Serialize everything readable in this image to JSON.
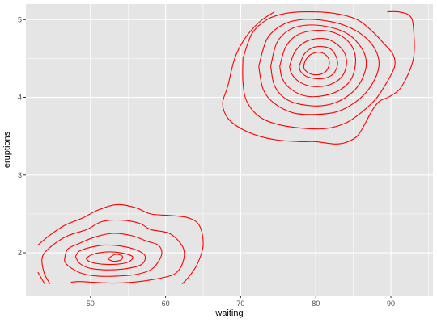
{
  "chart_data": {
    "type": "contour",
    "xlabel": "waiting",
    "ylabel": "eruptions",
    "xlim": [
      41.4,
      95.6
    ],
    "ylim": [
      1.45,
      5.2
    ],
    "x_ticks": [
      50,
      60,
      70,
      80,
      90
    ],
    "x_tick_labels": [
      "50",
      "60",
      "70",
      "80",
      "90"
    ],
    "y_ticks": [
      2,
      3,
      4,
      5
    ],
    "y_tick_labels": [
      "2",
      "3",
      "4",
      "5"
    ],
    "grid": true,
    "panel_background": "#e5e5e5",
    "grid_color": "#ffffff",
    "line_color": "#ff0000",
    "contours": [
      {
        "points": [
          [
            43.9,
            1.6
          ],
          [
            43,
            1.75
          ]
        ]
      },
      {
        "points": [
          [
            43,
            2.1
          ],
          [
            44.5,
            2.22
          ],
          [
            46.5,
            2.35
          ],
          [
            49,
            2.45
          ],
          [
            51,
            2.55
          ],
          [
            53.5,
            2.62
          ],
          [
            56,
            2.58
          ],
          [
            58,
            2.5
          ],
          [
            60.5,
            2.48
          ],
          [
            63,
            2.45
          ],
          [
            64.5,
            2.35
          ],
          [
            65,
            2.1
          ],
          [
            64.2,
            1.85
          ],
          [
            63,
            1.68
          ],
          [
            62.2,
            1.6
          ]
        ]
      },
      {
        "points": [
          [
            44.6,
            1.6
          ],
          [
            43.8,
            1.75
          ],
          [
            43.6,
            1.95
          ],
          [
            45,
            2.1
          ],
          [
            47,
            2.22
          ],
          [
            49.5,
            2.3
          ],
          [
            51.5,
            2.4
          ],
          [
            54,
            2.42
          ],
          [
            56.5,
            2.38
          ],
          [
            58,
            2.3
          ],
          [
            60.5,
            2.25
          ],
          [
            62,
            2.12
          ],
          [
            62.5,
            2
          ],
          [
            62.2,
            1.85
          ],
          [
            61.5,
            1.75
          ],
          [
            60.5,
            1.7
          ],
          [
            58,
            1.65
          ],
          [
            55.5,
            1.62
          ],
          [
            53,
            1.61
          ],
          [
            50.5,
            1.62
          ],
          [
            48.5,
            1.63
          ],
          [
            47.4,
            1.62
          ]
        ]
      },
      {
        "points": [
          [
            46.6,
            1.95
          ],
          [
            47,
            2.05
          ],
          [
            48.5,
            2.12
          ],
          [
            50.5,
            2.2
          ],
          [
            53,
            2.25
          ],
          [
            55.5,
            2.22
          ],
          [
            57.5,
            2.15
          ],
          [
            59,
            2.1
          ],
          [
            59.5,
            2
          ],
          [
            59,
            1.88
          ],
          [
            58,
            1.78
          ],
          [
            56,
            1.72
          ],
          [
            53.5,
            1.7
          ],
          [
            51,
            1.7
          ],
          [
            49,
            1.73
          ],
          [
            47.5,
            1.8
          ],
          [
            46.6,
            1.88
          ],
          [
            46.6,
            1.95
          ]
        ]
      },
      {
        "points": [
          [
            48,
            1.95
          ],
          [
            48.5,
            2.02
          ],
          [
            50,
            2.07
          ],
          [
            52,
            2.1
          ],
          [
            54.5,
            2.08
          ],
          [
            56.5,
            2.02
          ],
          [
            57.3,
            1.95
          ],
          [
            56.8,
            1.85
          ],
          [
            55,
            1.8
          ],
          [
            52.5,
            1.78
          ],
          [
            50,
            1.8
          ],
          [
            48.6,
            1.86
          ],
          [
            48,
            1.95
          ]
        ]
      },
      {
        "points": [
          [
            49.4,
            1.93
          ],
          [
            50.3,
            1.98
          ],
          [
            52,
            2.01
          ],
          [
            54,
            2
          ],
          [
            55.6,
            1.95
          ],
          [
            55,
            1.88
          ],
          [
            53,
            1.85
          ],
          [
            51,
            1.86
          ],
          [
            49.8,
            1.89
          ],
          [
            49.4,
            1.93
          ]
        ]
      },
      {
        "points": [
          [
            52.4,
            1.93
          ],
          [
            53.3,
            1.98
          ],
          [
            54.2,
            1.96
          ],
          [
            54.1,
            1.91
          ],
          [
            53.2,
            1.89
          ],
          [
            52.5,
            1.91
          ],
          [
            52.4,
            1.93
          ]
        ]
      },
      {
        "points": [
          [
            74.5,
            5.1
          ],
          [
            72.5,
            4.97
          ],
          [
            70.5,
            4.75
          ],
          [
            69.2,
            4.5
          ],
          [
            68.3,
            4.15
          ],
          [
            67.6,
            3.92
          ],
          [
            68.3,
            3.73
          ],
          [
            70,
            3.6
          ],
          [
            72.5,
            3.5
          ],
          [
            75,
            3.45
          ],
          [
            78,
            3.43
          ],
          [
            80,
            3.43
          ],
          [
            82.5,
            3.4
          ],
          [
            84,
            3.42
          ],
          [
            85.5,
            3.5
          ],
          [
            86.5,
            3.65
          ],
          [
            87.5,
            3.83
          ],
          [
            88.5,
            3.95
          ],
          [
            90,
            4.02
          ],
          [
            91.5,
            4.15
          ],
          [
            93,
            4.5
          ],
          [
            93,
            4.9
          ],
          [
            92.5,
            5.05
          ],
          [
            91,
            5.1
          ],
          [
            89.5,
            5.1
          ]
        ]
      },
      {
        "points": [
          [
            70.3,
            4.5
          ],
          [
            71.5,
            4.82
          ],
          [
            73.5,
            5
          ],
          [
            76,
            5.08
          ],
          [
            79,
            5.1
          ],
          [
            82.5,
            5.08
          ],
          [
            85.5,
            5
          ],
          [
            87.5,
            4.85
          ],
          [
            89,
            4.7
          ],
          [
            90.3,
            4.55
          ],
          [
            90.5,
            4.4
          ],
          [
            89.5,
            4.2
          ],
          [
            88,
            3.98
          ],
          [
            86,
            3.8
          ],
          [
            84,
            3.67
          ],
          [
            81.5,
            3.6
          ],
          [
            78.5,
            3.6
          ],
          [
            75,
            3.65
          ],
          [
            72.5,
            3.75
          ],
          [
            70.8,
            3.95
          ],
          [
            70.3,
            4.2
          ],
          [
            70.3,
            4.5
          ]
        ]
      },
      {
        "points": [
          [
            72.4,
            4.4
          ],
          [
            73.5,
            4.75
          ],
          [
            75.5,
            4.93
          ],
          [
            78,
            5
          ],
          [
            81,
            4.99
          ],
          [
            84,
            4.92
          ],
          [
            86.5,
            4.78
          ],
          [
            88,
            4.6
          ],
          [
            88.4,
            4.4
          ],
          [
            87.5,
            4.17
          ],
          [
            85.7,
            3.97
          ],
          [
            83,
            3.82
          ],
          [
            80,
            3.78
          ],
          [
            77,
            3.8
          ],
          [
            74.5,
            3.92
          ],
          [
            73,
            4.1
          ],
          [
            72.4,
            4.4
          ]
        ]
      },
      {
        "points": [
          [
            74,
            4.4
          ],
          [
            74.8,
            4.7
          ],
          [
            76.5,
            4.87
          ],
          [
            79,
            4.93
          ],
          [
            82,
            4.9
          ],
          [
            84.5,
            4.8
          ],
          [
            86.3,
            4.6
          ],
          [
            86.7,
            4.4
          ],
          [
            85.8,
            4.17
          ],
          [
            84,
            4
          ],
          [
            81.5,
            3.9
          ],
          [
            78.5,
            3.9
          ],
          [
            76,
            3.98
          ],
          [
            74.5,
            4.15
          ],
          [
            74,
            4.4
          ]
        ]
      },
      {
        "points": [
          [
            75.2,
            4.4
          ],
          [
            76,
            4.65
          ],
          [
            77.5,
            4.8
          ],
          [
            80,
            4.86
          ],
          [
            82.5,
            4.83
          ],
          [
            84.5,
            4.7
          ],
          [
            85.3,
            4.5
          ],
          [
            84.8,
            4.25
          ],
          [
            83.3,
            4.1
          ],
          [
            81,
            4.02
          ],
          [
            78.5,
            4.02
          ],
          [
            76.5,
            4.12
          ],
          [
            75.5,
            4.25
          ],
          [
            75.2,
            4.4
          ]
        ]
      },
      {
        "points": [
          [
            76.5,
            4.4
          ],
          [
            77.3,
            4.6
          ],
          [
            79,
            4.73
          ],
          [
            81.5,
            4.75
          ],
          [
            83.5,
            4.62
          ],
          [
            84.1,
            4.45
          ],
          [
            83.5,
            4.27
          ],
          [
            81.8,
            4.16
          ],
          [
            79.5,
            4.14
          ],
          [
            77.8,
            4.2
          ],
          [
            76.8,
            4.3
          ],
          [
            76.5,
            4.4
          ]
        ]
      },
      {
        "points": [
          [
            77.8,
            4.4
          ],
          [
            78.5,
            4.56
          ],
          [
            80,
            4.65
          ],
          [
            82,
            4.62
          ],
          [
            82.9,
            4.45
          ],
          [
            82.3,
            4.3
          ],
          [
            80.8,
            4.24
          ],
          [
            79,
            4.26
          ],
          [
            78,
            4.33
          ],
          [
            77.8,
            4.4
          ]
        ]
      },
      {
        "points": [
          [
            78.4,
            4.4
          ],
          [
            78.6,
            4.47
          ],
          [
            79.3,
            4.55
          ],
          [
            80.5,
            4.58
          ],
          [
            81.5,
            4.53
          ],
          [
            81.8,
            4.43
          ],
          [
            81.3,
            4.33
          ],
          [
            80.2,
            4.29
          ],
          [
            79.1,
            4.31
          ],
          [
            78.5,
            4.36
          ],
          [
            78.4,
            4.4
          ]
        ]
      }
    ]
  }
}
